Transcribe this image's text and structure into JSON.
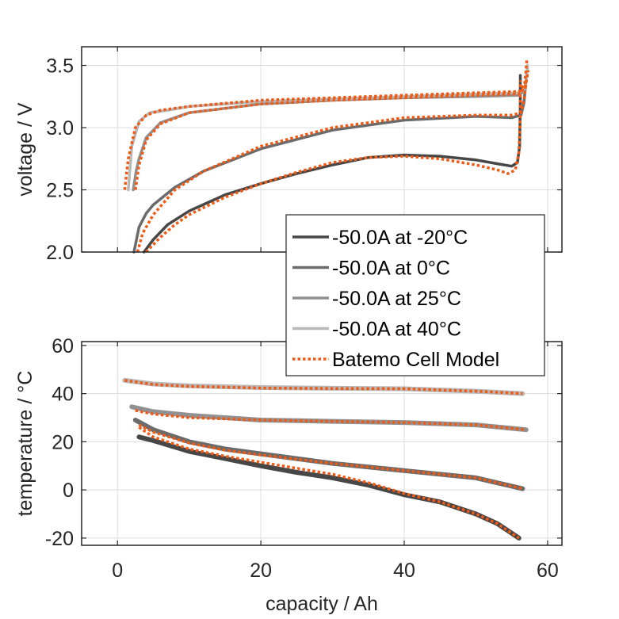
{
  "chart_data": [
    {
      "type": "line",
      "panel": "top",
      "title": "",
      "xlabel": "",
      "ylabel": "voltage / V",
      "xlim": [
        -5,
        62
      ],
      "ylim": [
        2.0,
        3.65
      ],
      "xticks": [
        0,
        20,
        40,
        60
      ],
      "xtick_labels_visible": false,
      "yticks": [
        2.0,
        2.5,
        3.0,
        3.5
      ],
      "ytick_labels": [
        "2.0",
        "2.5",
        "3.0",
        "3.5"
      ],
      "grid": true,
      "series": [
        {
          "name": "-50.0A at -20°C",
          "color": "#474747",
          "style": "solid",
          "x": [
            3.7,
            5,
            7,
            10,
            15,
            20,
            25,
            30,
            35,
            40,
            45,
            50,
            53,
            55,
            55.8,
            56.1,
            56.2,
            56.2
          ],
          "y": [
            2.0,
            2.1,
            2.22,
            2.33,
            2.46,
            2.55,
            2.63,
            2.7,
            2.76,
            2.78,
            2.77,
            2.74,
            2.71,
            2.69,
            2.72,
            2.85,
            3.2,
            3.42
          ]
        },
        {
          "name": "-50.0A at 0°C",
          "color": "#6b6b6b",
          "style": "solid",
          "x": [
            2.3,
            3,
            4,
            5,
            8,
            12,
            20,
            30,
            40,
            50,
            55,
            56.3,
            56.7,
            56.9
          ],
          "y": [
            2.0,
            2.2,
            2.31,
            2.38,
            2.52,
            2.65,
            2.83,
            2.98,
            3.06,
            3.09,
            3.08,
            3.1,
            3.2,
            3.33
          ]
        },
        {
          "name": "-50.0A at 25°C",
          "color": "#919191",
          "style": "solid",
          "x": [
            2.2,
            2.6,
            3,
            4,
            6,
            10,
            20,
            30,
            40,
            50,
            56,
            56.8,
            57.2
          ],
          "y": [
            2.5,
            2.65,
            2.75,
            2.92,
            3.04,
            3.12,
            3.19,
            3.22,
            3.24,
            3.25,
            3.26,
            3.3,
            3.48
          ]
        },
        {
          "name": "-50.0A at 40°C",
          "color": "#b8b8b8",
          "style": "solid",
          "x": [
            1.5,
            2,
            3,
            4.5,
            7,
            10,
            20,
            30,
            40,
            50,
            56,
            56.9,
            57.2
          ],
          "y": [
            2.5,
            2.85,
            3.05,
            3.12,
            3.14,
            3.17,
            3.21,
            3.23,
            3.25,
            3.27,
            3.28,
            3.32,
            3.5
          ]
        },
        {
          "name": "Batemo Cell Model (-20°C)",
          "color": "#f05a14",
          "style": "dotted",
          "x": [
            4,
            6,
            8,
            10,
            15,
            20,
            25,
            30,
            35,
            40,
            45,
            50,
            53,
            54.5,
            55.5,
            56,
            56.2,
            56.2
          ],
          "y": [
            2.0,
            2.12,
            2.22,
            2.3,
            2.44,
            2.55,
            2.64,
            2.72,
            2.76,
            2.77,
            2.75,
            2.7,
            2.66,
            2.63,
            2.66,
            2.8,
            3.1,
            3.38
          ]
        },
        {
          "name": "Batemo Cell Model (0°C)",
          "color": "#f05a14",
          "style": "dotted",
          "x": [
            2.8,
            3.5,
            5,
            8,
            12,
            20,
            30,
            40,
            50,
            55,
            56.3,
            56.8,
            57
          ],
          "y": [
            2.0,
            2.15,
            2.3,
            2.5,
            2.65,
            2.85,
            3.0,
            3.08,
            3.1,
            3.1,
            3.12,
            3.25,
            3.38
          ]
        },
        {
          "name": "Batemo Cell Model (25°C)",
          "color": "#f05a14",
          "style": "dotted",
          "x": [
            2.5,
            3,
            4,
            6,
            10,
            20,
            30,
            40,
            50,
            56,
            56.9,
            57.3
          ],
          "y": [
            2.5,
            2.7,
            2.9,
            3.03,
            3.12,
            3.19,
            3.22,
            3.24,
            3.26,
            3.27,
            3.33,
            3.46
          ]
        },
        {
          "name": "Batemo Cell Model (40°C)",
          "color": "#f05a14",
          "style": "dotted",
          "x": [
            1.0,
            1.5,
            2.5,
            4,
            6,
            10,
            20,
            30,
            40,
            50,
            56,
            56.8,
            57.1
          ],
          "y": [
            2.5,
            2.75,
            3.0,
            3.1,
            3.14,
            3.17,
            3.22,
            3.24,
            3.26,
            3.28,
            3.29,
            3.35,
            3.54
          ]
        }
      ]
    },
    {
      "type": "line",
      "panel": "bottom",
      "title": "",
      "xlabel": "capacity / Ah",
      "ylabel": "temperature / °C",
      "xlim": [
        -5,
        62
      ],
      "ylim": [
        -23,
        61.6
      ],
      "xticks": [
        0,
        20,
        40,
        60
      ],
      "xtick_labels": [
        "0",
        "20",
        "40",
        "60"
      ],
      "yticks": [
        -20,
        0,
        20,
        40,
        60
      ],
      "ytick_labels": [
        "-20",
        "0",
        "20",
        "40",
        "60"
      ],
      "grid": true,
      "series": [
        {
          "name": "-50.0A at -20°C",
          "color": "#474747",
          "style": "solid",
          "x": [
            3,
            5,
            10,
            15,
            20,
            25,
            30,
            35,
            40,
            45,
            50,
            53,
            56
          ],
          "y": [
            22,
            20.5,
            16,
            13,
            10,
            7.3,
            5,
            2,
            -2,
            -5,
            -10,
            -14,
            -20
          ]
        },
        {
          "name": "-50.0A at 0°C",
          "color": "#6b6b6b",
          "style": "solid",
          "x": [
            2.5,
            5,
            10,
            15,
            20,
            30,
            40,
            50,
            56.5
          ],
          "y": [
            29,
            25,
            20,
            17,
            15,
            11,
            8,
            5,
            0.5
          ]
        },
        {
          "name": "-50.0A at 25°C",
          "color": "#919191",
          "style": "solid",
          "x": [
            2,
            5,
            10,
            20,
            30,
            40,
            50,
            57
          ],
          "y": [
            34.5,
            32.5,
            31,
            29,
            28.5,
            28,
            27,
            25
          ]
        },
        {
          "name": "-50.0A at 40°C",
          "color": "#b8b8b8",
          "style": "solid",
          "x": [
            1,
            5,
            10,
            20,
            30,
            40,
            50,
            56.5
          ],
          "y": [
            45.5,
            44,
            43.2,
            42.5,
            42.2,
            42,
            41,
            40
          ]
        },
        {
          "name": "Batemo Cell Model (-20°C)",
          "color": "#f05a14",
          "style": "dotted",
          "x": [
            3,
            5,
            10,
            15,
            20,
            25,
            30,
            35,
            40,
            45,
            50,
            53,
            56
          ],
          "y": [
            26,
            22,
            17,
            14,
            11.5,
            9,
            6.5,
            3,
            -1.5,
            -5,
            -10,
            -14,
            -20
          ]
        },
        {
          "name": "Batemo Cell Model (0°C)",
          "color": "#f05a14",
          "style": "dotted",
          "x": [
            3,
            5,
            10,
            15,
            20,
            30,
            40,
            50,
            56.5
          ],
          "y": [
            27,
            24,
            19.5,
            16.5,
            14.5,
            11,
            8,
            5,
            0.5
          ]
        },
        {
          "name": "Batemo Cell Model (25°C)",
          "color": "#f05a14",
          "style": "dotted",
          "x": [
            2.5,
            5,
            10,
            20,
            30,
            40,
            50,
            57
          ],
          "y": [
            33,
            31.5,
            30,
            29,
            28.5,
            28,
            27,
            25
          ]
        },
        {
          "name": "Batemo Cell Model (40°C)",
          "color": "#f05a14",
          "style": "dotted",
          "x": [
            1,
            5,
            10,
            20,
            30,
            40,
            50,
            56.5
          ],
          "y": [
            45.5,
            43.8,
            43,
            42.3,
            42.1,
            42,
            41,
            40
          ]
        }
      ]
    }
  ],
  "legend": {
    "placement": "center-right",
    "entries": [
      {
        "label": "-50.0A at -20°C",
        "color": "#474747",
        "style": "solid"
      },
      {
        "label": "-50.0A at 0°C",
        "color": "#6b6b6b",
        "style": "solid"
      },
      {
        "label": "-50.0A at 25°C",
        "color": "#919191",
        "style": "solid"
      },
      {
        "label": "-50.0A at 40°C",
        "color": "#b8b8b8",
        "style": "solid"
      },
      {
        "label": "Batemo Cell Model",
        "color": "#f05a14",
        "style": "dotted"
      }
    ]
  }
}
